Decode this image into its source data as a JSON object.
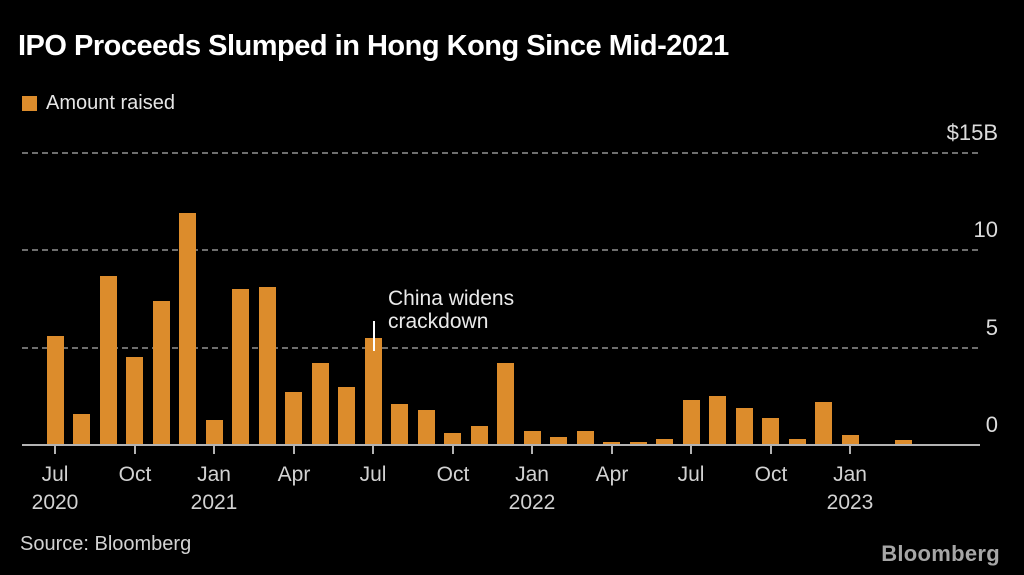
{
  "chart_data": {
    "type": "bar",
    "title": "IPO Proceeds Slumped in Hong Kong Since Mid-2021",
    "legend": "Amount raised",
    "ylabel": "Amount raised ($B)",
    "ylim": [
      0,
      15
    ],
    "grid": "horizontal-dashed",
    "legend_position": "top-left",
    "bar_color": "#DC8C2C",
    "background_color": "#000000",
    "categories": [
      "Jul 2020",
      "Aug 2020",
      "Sep 2020",
      "Oct 2020",
      "Nov 2020",
      "Dec 2020",
      "Jan 2021",
      "Feb 2021",
      "Mar 2021",
      "Apr 2021",
      "May 2021",
      "Jun 2021",
      "Jul 2021",
      "Aug 2021",
      "Sep 2021",
      "Oct 2021",
      "Nov 2021",
      "Dec 2021",
      "Jan 2022",
      "Feb 2022",
      "Mar 2022",
      "Apr 2022",
      "May 2022",
      "Jun 2022",
      "Jul 2022",
      "Aug 2022",
      "Sep 2022",
      "Oct 2022",
      "Nov 2022",
      "Dec 2022",
      "Jan 2023",
      "Feb 2023",
      "Mar 2023"
    ],
    "values": [
      5.6,
      1.6,
      8.7,
      4.5,
      7.4,
      11.9,
      1.3,
      8.0,
      8.1,
      2.7,
      4.2,
      3.0,
      5.5,
      2.1,
      1.8,
      0.6,
      1.0,
      4.2,
      0.7,
      0.4,
      0.7,
      0.15,
      0.15,
      0.3,
      2.3,
      2.5,
      1.9,
      1.4,
      0.3,
      2.2,
      0.5,
      0.05,
      0.25
    ],
    "yticks": [
      {
        "label": "$15B",
        "value": 15
      },
      {
        "label": "10",
        "value": 10
      },
      {
        "label": "5",
        "value": 5
      },
      {
        "label": "0",
        "value": 0
      }
    ],
    "xticks": [
      {
        "index": 0,
        "month": "Jul",
        "year": "2020"
      },
      {
        "index": 3,
        "month": "Oct",
        "year": ""
      },
      {
        "index": 6,
        "month": "Jan",
        "year": "2021"
      },
      {
        "index": 9,
        "month": "Apr",
        "year": ""
      },
      {
        "index": 12,
        "month": "Jul",
        "year": ""
      },
      {
        "index": 15,
        "month": "Oct",
        "year": ""
      },
      {
        "index": 18,
        "month": "Jan",
        "year": "2022"
      },
      {
        "index": 21,
        "month": "Apr",
        "year": ""
      },
      {
        "index": 24,
        "month": "Jul",
        "year": ""
      },
      {
        "index": 27,
        "month": "Oct",
        "year": ""
      },
      {
        "index": 30,
        "month": "Jan",
        "year": "2023"
      }
    ],
    "annotation": {
      "line1": "China widens",
      "line2": "crackdown",
      "target": "Jul 2021"
    },
    "source": "Source: Bloomberg",
    "logo": "Bloomberg"
  }
}
